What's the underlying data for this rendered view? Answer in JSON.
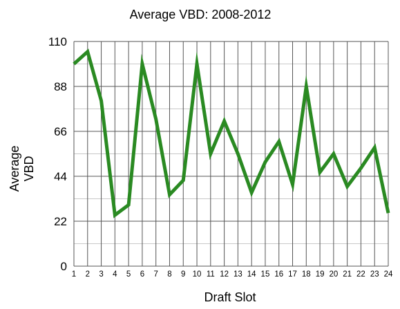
{
  "chart_data": {
    "type": "line",
    "title": "Average VBD: 2008-2012",
    "xlabel": "Draft Slot",
    "ylabel_lines": [
      "Average",
      "VBD"
    ],
    "x": [
      1,
      2,
      3,
      4,
      5,
      6,
      7,
      8,
      9,
      10,
      11,
      12,
      13,
      14,
      15,
      16,
      17,
      18,
      19,
      20,
      21,
      22,
      23,
      24
    ],
    "series": [
      {
        "values": [
          99,
          105,
          81,
          25,
          30,
          99,
          72,
          35,
          42,
          99,
          55,
          71,
          55,
          36,
          51,
          61,
          40,
          88,
          46,
          55,
          39,
          48,
          58,
          26
        ],
        "color": "#2a8a22"
      }
    ],
    "ylim": [
      0,
      110
    ],
    "yticks": [
      0,
      22,
      44,
      66,
      88,
      110
    ],
    "xlim": [
      1,
      24
    ],
    "grid": true,
    "legend": "none"
  }
}
